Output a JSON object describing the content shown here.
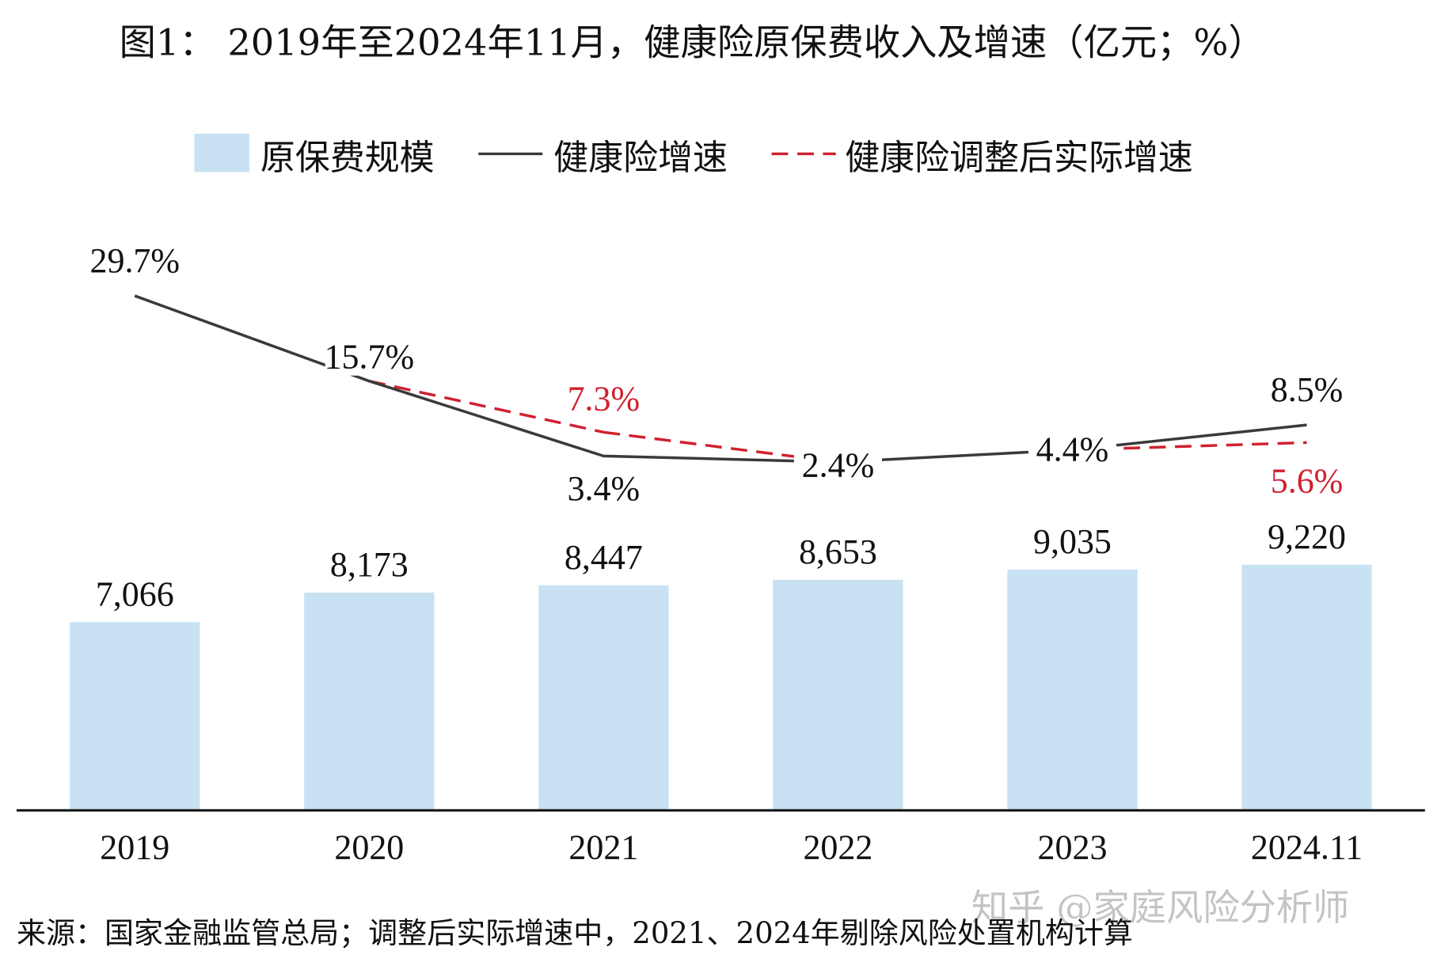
{
  "chart_data": {
    "type": "bar+line",
    "title": "图1： 2019年至2024年11月，健康险原保费收入及增速（亿元；%）",
    "categories": [
      "2019",
      "2020",
      "2021",
      "2022",
      "2023",
      "2024.11"
    ],
    "legend_position": "top",
    "grid": false,
    "series": [
      {
        "name": "原保费规模",
        "type": "bar",
        "color": "#c9e2f3",
        "values": [
          7066,
          8173,
          8447,
          8653,
          9035,
          9220
        ],
        "labels": [
          "7,066",
          "8,173",
          "8,447",
          "8,653",
          "9,035",
          "9,220"
        ]
      },
      {
        "name": "健康险增速",
        "type": "line",
        "color": "#3a3a3a",
        "values": [
          29.7,
          15.7,
          3.4,
          2.4,
          4.4,
          8.5
        ],
        "labels": [
          "29.7%",
          "15.7%",
          "3.4%",
          "2.4%",
          "4.4%",
          "8.5%"
        ]
      },
      {
        "name": "健康险调整后实际增速",
        "type": "line",
        "style": "dashed",
        "color": "#d0202e",
        "values": [
          null,
          15.7,
          7.3,
          2.4,
          4.4,
          5.6
        ],
        "labels": [
          "",
          "",
          "7.3%",
          "",
          "",
          "5.6%"
        ]
      }
    ],
    "bar_ylim": [
      0,
      10000
    ],
    "source": "来源：国家金融监管总局；调整后实际增速中，2021、2024年剔除风险处置机构计算"
  },
  "watermark": "知乎 @家庭风险分析师"
}
